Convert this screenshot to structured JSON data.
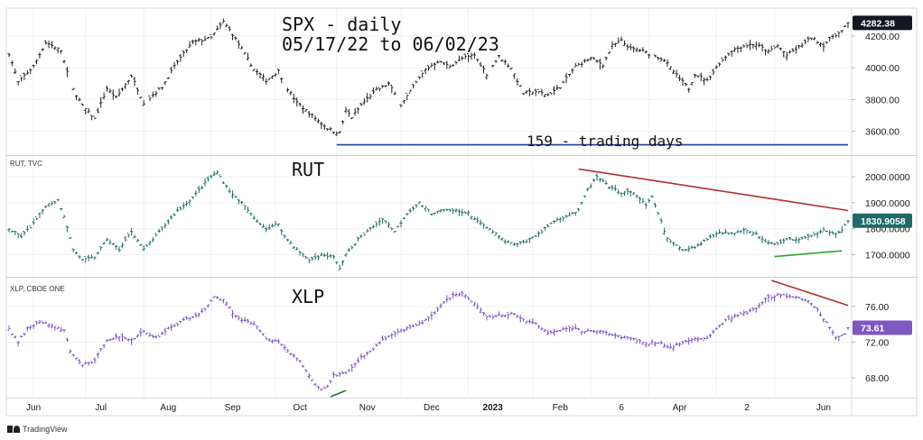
{
  "chart_data": {
    "type": "ohlc-bars",
    "title": "SPX - daily",
    "date_range": "05/17/22 to 06/02/23",
    "x_tick_labels": [
      "Jun",
      "Jul",
      "Aug",
      "Sep",
      "Oct",
      "Nov",
      "Dec",
      "2023",
      "Feb",
      "6",
      "Apr",
      "2",
      "Jun"
    ],
    "panels": [
      {
        "name": "SPX",
        "source_label": "",
        "color": "#222222",
        "ylim": [
          3450,
          4370
        ],
        "y_ticks": [
          3600,
          3800,
          4000,
          4200
        ],
        "y_tick_labels": [
          "3600.00",
          "3800.00",
          "4000.00",
          "4200.00"
        ],
        "last_value": "4282.38",
        "badge_color": "#131722",
        "series_anchors": [
          [
            0,
            4090
          ],
          [
            3,
            3910
          ],
          [
            8,
            4010
          ],
          [
            12,
            4160
          ],
          [
            17,
            4110
          ],
          [
            20,
            3900
          ],
          [
            24,
            3760
          ],
          [
            28,
            3680
          ],
          [
            32,
            3870
          ],
          [
            35,
            3810
          ],
          [
            40,
            3950
          ],
          [
            44,
            3780
          ],
          [
            50,
            3880
          ],
          [
            55,
            4040
          ],
          [
            60,
            4160
          ],
          [
            66,
            4190
          ],
          [
            70,
            4290
          ],
          [
            72,
            4240
          ],
          [
            76,
            4120
          ],
          [
            80,
            3990
          ],
          [
            84,
            3920
          ],
          [
            88,
            3980
          ],
          [
            90,
            3900
          ],
          [
            94,
            3780
          ],
          [
            99,
            3700
          ],
          [
            102,
            3650
          ],
          [
            104,
            3620
          ],
          [
            106,
            3600
          ],
          [
            108,
            3590
          ],
          [
            110,
            3730
          ],
          [
            112,
            3690
          ],
          [
            116,
            3790
          ],
          [
            120,
            3860
          ],
          [
            124,
            3900
          ],
          [
            128,
            3770
          ],
          [
            132,
            3880
          ],
          [
            136,
            3990
          ],
          [
            140,
            4040
          ],
          [
            144,
            4010
          ],
          [
            148,
            4060
          ],
          [
            152,
            4080
          ],
          [
            156,
            3960
          ],
          [
            160,
            4070
          ],
          [
            164,
            4000
          ],
          [
            168,
            3840
          ],
          [
            172,
            3850
          ],
          [
            176,
            3830
          ],
          [
            180,
            3880
          ],
          [
            185,
            4010
          ],
          [
            190,
            4060
          ],
          [
            194,
            4020
          ],
          [
            197,
            4140
          ],
          [
            200,
            4170
          ],
          [
            203,
            4120
          ],
          [
            206,
            4110
          ],
          [
            210,
            4080
          ],
          [
            214,
            4050
          ],
          [
            216,
            4000
          ],
          [
            219,
            3930
          ],
          [
            222,
            3870
          ],
          [
            224,
            3960
          ],
          [
            228,
            3920
          ],
          [
            232,
            4030
          ],
          [
            236,
            4110
          ],
          [
            240,
            4140
          ],
          [
            244,
            4150
          ],
          [
            248,
            4100
          ],
          [
            251,
            4140
          ],
          [
            254,
            4080
          ],
          [
            258,
            4130
          ],
          [
            262,
            4190
          ],
          [
            266,
            4140
          ],
          [
            269,
            4200
          ],
          [
            272,
            4230
          ],
          [
            274,
            4282
          ]
        ],
        "annotations": [
          {
            "kind": "horizontal-line",
            "label": "159 - trading days",
            "color": "#1f3fa0",
            "from_bar": 107,
            "to_bar": 274,
            "value": 3515
          }
        ]
      },
      {
        "name": "RUT",
        "source_label": "RUT, TVC",
        "color": "#1f6b67",
        "ylim": [
          1615,
          2080
        ],
        "y_ticks": [
          1700,
          1800,
          1900,
          2000
        ],
        "y_tick_labels": [
          "1700.0000",
          "1800.0000",
          "1900.0000",
          "2000.0000"
        ],
        "last_value": "1830.9058",
        "badge_color": "#1f6b67",
        "series_anchors": [
          [
            0,
            1800
          ],
          [
            4,
            1770
          ],
          [
            8,
            1820
          ],
          [
            12,
            1890
          ],
          [
            16,
            1910
          ],
          [
            18,
            1850
          ],
          [
            21,
            1720
          ],
          [
            24,
            1680
          ],
          [
            28,
            1690
          ],
          [
            32,
            1760
          ],
          [
            36,
            1720
          ],
          [
            40,
            1790
          ],
          [
            44,
            1720
          ],
          [
            50,
            1800
          ],
          [
            55,
            1870
          ],
          [
            60,
            1920
          ],
          [
            65,
            1990
          ],
          [
            68,
            2020
          ],
          [
            70,
            1980
          ],
          [
            73,
            1930
          ],
          [
            76,
            1900
          ],
          [
            80,
            1840
          ],
          [
            84,
            1800
          ],
          [
            88,
            1820
          ],
          [
            90,
            1770
          ],
          [
            94,
            1720
          ],
          [
            98,
            1680
          ],
          [
            102,
            1700
          ],
          [
            106,
            1690
          ],
          [
            108,
            1650
          ],
          [
            110,
            1700
          ],
          [
            114,
            1760
          ],
          [
            118,
            1800
          ],
          [
            122,
            1840
          ],
          [
            126,
            1790
          ],
          [
            130,
            1860
          ],
          [
            134,
            1900
          ],
          [
            138,
            1860
          ],
          [
            142,
            1870
          ],
          [
            146,
            1870
          ],
          [
            150,
            1860
          ],
          [
            154,
            1820
          ],
          [
            158,
            1790
          ],
          [
            162,
            1750
          ],
          [
            166,
            1740
          ],
          [
            170,
            1760
          ],
          [
            174,
            1790
          ],
          [
            178,
            1830
          ],
          [
            182,
            1850
          ],
          [
            186,
            1870
          ],
          [
            189,
            1950
          ],
          [
            192,
            2000
          ],
          [
            196,
            1960
          ],
          [
            200,
            1940
          ],
          [
            204,
            1940
          ],
          [
            208,
            1890
          ],
          [
            210,
            1920
          ],
          [
            212,
            1860
          ],
          [
            215,
            1760
          ],
          [
            220,
            1720
          ],
          [
            224,
            1730
          ],
          [
            228,
            1760
          ],
          [
            232,
            1790
          ],
          [
            236,
            1780
          ],
          [
            240,
            1800
          ],
          [
            244,
            1780
          ],
          [
            247,
            1750
          ],
          [
            250,
            1740
          ],
          [
            254,
            1760
          ],
          [
            258,
            1760
          ],
          [
            262,
            1770
          ],
          [
            266,
            1800
          ],
          [
            269,
            1780
          ],
          [
            272,
            1790
          ],
          [
            274,
            1831
          ]
        ],
        "annotations": [
          {
            "kind": "trend-line",
            "color": "#b03030",
            "from_bar": 186,
            "to_bar": 274,
            "values": [
              2030,
              1870
            ]
          },
          {
            "kind": "trend-line",
            "color": "#2fa52f",
            "from_bar": 250,
            "to_bar": 272,
            "values": [
              1693,
              1715
            ]
          }
        ]
      },
      {
        "name": "XLP",
        "source_label": "XLP, CBOE ONE",
        "color": "#7a4fc4",
        "ylim": [
          65.8,
          79.2
        ],
        "y_ticks": [
          68,
          72,
          76
        ],
        "y_tick_labels": [
          "68.00",
          "72.00",
          "76.00"
        ],
        "last_value": "73.61",
        "badge_color": "#7e57c2",
        "series_anchors": [
          [
            0,
            73.5
          ],
          [
            3,
            72.0
          ],
          [
            6,
            73.5
          ],
          [
            10,
            74.3
          ],
          [
            14,
            73.8
          ],
          [
            18,
            73.3
          ],
          [
            20,
            71.0
          ],
          [
            24,
            69.4
          ],
          [
            28,
            70.0
          ],
          [
            32,
            72.3
          ],
          [
            36,
            72.6
          ],
          [
            40,
            72.3
          ],
          [
            44,
            73.2
          ],
          [
            48,
            72.5
          ],
          [
            52,
            73.5
          ],
          [
            56,
            74.3
          ],
          [
            60,
            74.8
          ],
          [
            64,
            75.6
          ],
          [
            67,
            77.1
          ],
          [
            70,
            76.8
          ],
          [
            73,
            75.3
          ],
          [
            76,
            74.5
          ],
          [
            80,
            74.0
          ],
          [
            84,
            72.5
          ],
          [
            88,
            72.0
          ],
          [
            92,
            70.8
          ],
          [
            95,
            69.8
          ],
          [
            98,
            68.3
          ],
          [
            100,
            67.2
          ],
          [
            102,
            66.8
          ],
          [
            104,
            67.0
          ],
          [
            106,
            68.3
          ],
          [
            110,
            68.5
          ],
          [
            114,
            70.0
          ],
          [
            118,
            71.0
          ],
          [
            122,
            72.3
          ],
          [
            126,
            73.0
          ],
          [
            130,
            73.5
          ],
          [
            134,
            74.0
          ],
          [
            138,
            75.0
          ],
          [
            142,
            76.4
          ],
          [
            145,
            77.3
          ],
          [
            148,
            77.4
          ],
          [
            151,
            76.5
          ],
          [
            153,
            76.0
          ],
          [
            156,
            74.8
          ],
          [
            160,
            75.0
          ],
          [
            164,
            75.2
          ],
          [
            168,
            74.5
          ],
          [
            172,
            74.0
          ],
          [
            176,
            73.0
          ],
          [
            180,
            73.4
          ],
          [
            184,
            73.5
          ],
          [
            188,
            73.2
          ],
          [
            192,
            73.3
          ],
          [
            196,
            73.0
          ],
          [
            200,
            72.5
          ],
          [
            204,
            72.4
          ],
          [
            208,
            71.8
          ],
          [
            212,
            72.0
          ],
          [
            216,
            71.4
          ],
          [
            220,
            72.0
          ],
          [
            224,
            72.3
          ],
          [
            228,
            72.5
          ],
          [
            232,
            73.9
          ],
          [
            236,
            74.8
          ],
          [
            240,
            75.2
          ],
          [
            244,
            75.8
          ],
          [
            248,
            77.0
          ],
          [
            252,
            77.3
          ],
          [
            256,
            77.0
          ],
          [
            260,
            76.8
          ],
          [
            264,
            75.6
          ],
          [
            267,
            74.2
          ],
          [
            270,
            72.6
          ],
          [
            273,
            73.0
          ],
          [
            274,
            73.61
          ]
        ],
        "annotations": [
          {
            "kind": "trend-line",
            "color": "#b03030",
            "from_bar": 249,
            "to_bar": 274,
            "values": [
              78.9,
              76.1
            ]
          },
          {
            "kind": "trend-line",
            "color": "#2f6b2f",
            "from_bar": 105,
            "to_bar": 110,
            "values": [
              65.9,
              66.6
            ]
          }
        ]
      }
    ]
  },
  "brand": "TradingView"
}
